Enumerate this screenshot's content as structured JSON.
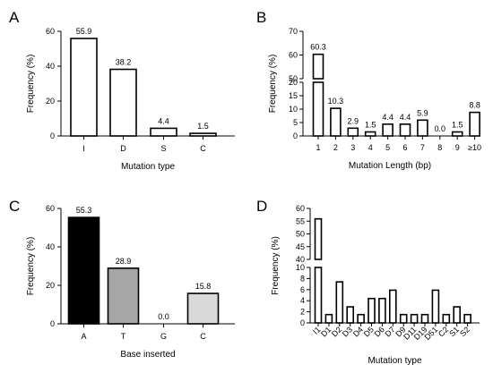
{
  "chart_data": [
    {
      "panel": "A",
      "type": "bar",
      "xlabel": "Mutation type",
      "ylabel": "Frequency (%)",
      "ylim": [
        0,
        60
      ],
      "yticks": [
        0,
        20,
        40,
        60
      ],
      "categories": [
        "I",
        "D",
        "S",
        "C"
      ],
      "values": [
        55.9,
        38.2,
        4.4,
        1.5
      ],
      "value_labels": [
        "55.9",
        "38.2",
        "4.4",
        "1.5"
      ],
      "bar_fill": [
        "#ffffff",
        "#ffffff",
        "#ffffff",
        "#ffffff"
      ]
    },
    {
      "panel": "B",
      "type": "bar",
      "xlabel": "Mutation Length (bp)",
      "ylabel": "Frequency (%)",
      "broken_axis": true,
      "ylim_lower": [
        0,
        20
      ],
      "yticks_lower": [
        0,
        5,
        10,
        15,
        20
      ],
      "ylim_upper": [
        50,
        70
      ],
      "yticks_upper": [
        50,
        60,
        70
      ],
      "categories": [
        "1",
        "2",
        "3",
        "4",
        "5",
        "6",
        "7",
        "8",
        "9",
        "≥10"
      ],
      "values": [
        60.3,
        10.3,
        2.9,
        1.5,
        4.4,
        4.4,
        5.9,
        0.0,
        1.5,
        8.8
      ],
      "value_labels": [
        "60.3",
        "10.3",
        "2.9",
        "1.5",
        "4.4",
        "4.4",
        "5.9",
        "0.0",
        "1.5",
        "8.8"
      ],
      "bar_fill": [
        "#ffffff",
        "#ffffff",
        "#ffffff",
        "#ffffff",
        "#ffffff",
        "#ffffff",
        "#ffffff",
        "#ffffff",
        "#ffffff",
        "#ffffff"
      ]
    },
    {
      "panel": "C",
      "type": "bar",
      "xlabel": "Base inserted",
      "ylabel": "Frequency (%)",
      "ylim": [
        0,
        60
      ],
      "yticks": [
        0,
        20,
        40,
        60
      ],
      "categories": [
        "A",
        "T",
        "G",
        "C"
      ],
      "values": [
        55.3,
        28.9,
        0.0,
        15.8
      ],
      "value_labels": [
        "55.3",
        "28.9",
        "0.0",
        "15.8"
      ],
      "bar_fill": [
        "#000000",
        "#a6a6a6",
        "#ffffff",
        "#d9d9d9"
      ]
    },
    {
      "panel": "D",
      "type": "bar",
      "xlabel": "Mutation type",
      "ylabel": "Frequency (%)",
      "broken_axis": true,
      "ylim_lower": [
        0,
        10
      ],
      "yticks_lower": [
        0,
        2,
        4,
        6,
        8,
        10
      ],
      "ylim_upper": [
        40,
        60
      ],
      "yticks_upper": [
        40,
        45,
        50,
        55,
        60
      ],
      "categories": [
        "I1",
        "D1",
        "D2",
        "D3",
        "D4",
        "D5",
        "D6",
        "D7",
        "D9",
        "D11",
        "D19",
        "D51",
        "C2",
        "S1",
        "S2"
      ],
      "values": [
        55.9,
        1.5,
        7.4,
        2.9,
        1.5,
        4.4,
        4.4,
        5.9,
        1.5,
        1.5,
        1.5,
        5.9,
        1.5,
        2.9,
        1.5
      ],
      "bar_fill": [
        "#ffffff",
        "#ffffff",
        "#ffffff",
        "#ffffff",
        "#ffffff",
        "#ffffff",
        "#ffffff",
        "#ffffff",
        "#ffffff",
        "#ffffff",
        "#ffffff",
        "#ffffff",
        "#ffffff",
        "#ffffff",
        "#ffffff"
      ]
    }
  ]
}
